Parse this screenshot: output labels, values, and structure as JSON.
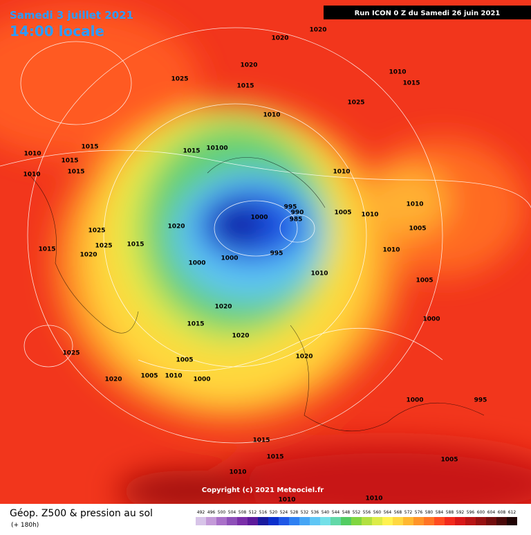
{
  "header": {
    "date": "Samedi 3 juillet 2021",
    "time": "14:00 locale",
    "run": "Run ICON 0 Z du Samedi 26 juin 2021"
  },
  "footer": {
    "title": "Géop. Z500 & pression au sol",
    "lead": "(+ 180h)",
    "copyright": "Copyright (c) 2021 Meteociel.fr"
  },
  "isobar_labels": [
    "1020",
    "1020",
    "1020",
    "1025",
    "1015",
    "1010",
    "1010",
    "1015",
    "1025",
    "1015",
    "10100",
    "1015",
    "1010",
    "1015",
    "1015",
    "1010",
    "1025",
    "1020",
    "1025",
    "1015",
    "1015",
    "1020",
    "1000",
    "995",
    "990",
    "985",
    "1000",
    "1000",
    "995",
    "1010",
    "1005",
    "1010",
    "1010",
    "1010",
    "1005",
    "1010",
    "1005",
    "1000",
    "1020",
    "1015",
    "1020",
    "1005",
    "1025",
    "1005",
    "1010",
    "1000",
    "1020",
    "1020",
    "1000",
    "995",
    "1015",
    "1015",
    "1010",
    "1010",
    "1005",
    "1010"
  ],
  "colorbar": {
    "levels": [
      492,
      496,
      500,
      504,
      508,
      512,
      516,
      520,
      524,
      528,
      532,
      536,
      540,
      544,
      548,
      552,
      556,
      560,
      564,
      568,
      572,
      576,
      580,
      584,
      588,
      592,
      596,
      600,
      604,
      608,
      612
    ],
    "colors": [
      "#d7c4e8",
      "#c49ad8",
      "#a970c8",
      "#8e4fb8",
      "#7a2ea8",
      "#5d1a9a",
      "#1a1a9e",
      "#0b2fcc",
      "#1f57e6",
      "#2e80f2",
      "#45a5f5",
      "#5fc6f5",
      "#73e0e8",
      "#62d8a8",
      "#52cc62",
      "#80d640",
      "#b2e040",
      "#dcec48",
      "#fff250",
      "#ffd840",
      "#ffb830",
      "#ff9428",
      "#ff7424",
      "#ff4c20",
      "#f22a1c",
      "#d81818",
      "#b81414",
      "#961010",
      "#720c0c",
      "#4a0808",
      "#200404"
    ]
  }
}
